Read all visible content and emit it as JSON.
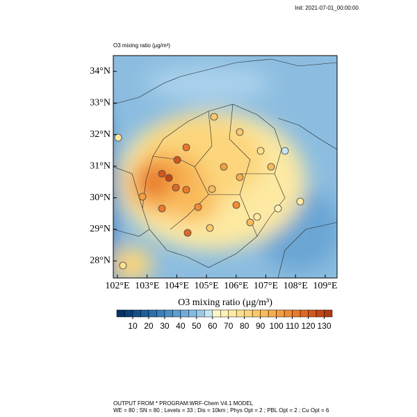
{
  "header": {
    "init": "Init: 2021-07-01_00:00:00",
    "title": "O3 mixing ratio  (μg/m³)"
  },
  "map": {
    "latlim": [
      27.46,
      34.5
    ],
    "lonlim": [
      101.86,
      109.4
    ],
    "lat_ticks": [
      {
        "value": 28,
        "label": "28°N"
      },
      {
        "value": 29,
        "label": "29°N"
      },
      {
        "value": 30,
        "label": "30°N"
      },
      {
        "value": 31,
        "label": "31°N"
      },
      {
        "value": 32,
        "label": "32°N"
      },
      {
        "value": 33,
        "label": "33°N"
      },
      {
        "value": 34,
        "label": "34°N"
      }
    ],
    "lon_ticks": [
      {
        "value": 102,
        "label": "102°E"
      },
      {
        "value": 103,
        "label": "103°E"
      },
      {
        "value": 104,
        "label": "104°E"
      },
      {
        "value": 105,
        "label": "105°E"
      },
      {
        "value": 106,
        "label": "106°E"
      },
      {
        "value": 107,
        "label": "107°E"
      },
      {
        "value": 108,
        "label": "108°E"
      },
      {
        "value": 109,
        "label": "109°E"
      }
    ]
  },
  "colorbar": {
    "label": "O3 mixing ratio  (μg/m³)",
    "lim": [
      0,
      135
    ],
    "ticks": [
      10,
      20,
      30,
      40,
      50,
      60,
      70,
      80,
      90,
      100,
      110,
      120,
      130
    ],
    "colors": [
      "#08306b",
      "#0c3f7a",
      "#144f8a",
      "#1d5f9b",
      "#2a70ad",
      "#3a80bb",
      "#4b8fc6",
      "#5e9ed0",
      "#71acd8",
      "#85bae0",
      "#9ac7e7",
      "#c6e6f2",
      "#fff7c8",
      "#fef1b5",
      "#fde9a2",
      "#fde08f",
      "#fcd57c",
      "#fbc96a",
      "#f9bb5b",
      "#f7ad4e",
      "#f49d41",
      "#ef8c36",
      "#e87a2c",
      "#df6824",
      "#d2571d",
      "#c24716",
      "#b03a11"
    ]
  },
  "footer": {
    "line1": "OUTPUT FROM *          PROGRAM:WRF-Chem V4.1 MODEL",
    "line2": "WE = 80 ; SN = 80 ; Levels = 33 ; Dis = 10km ; Phys Opt = 2 ; PBL Opt = 2 ; Cu Opt = 6"
  }
}
